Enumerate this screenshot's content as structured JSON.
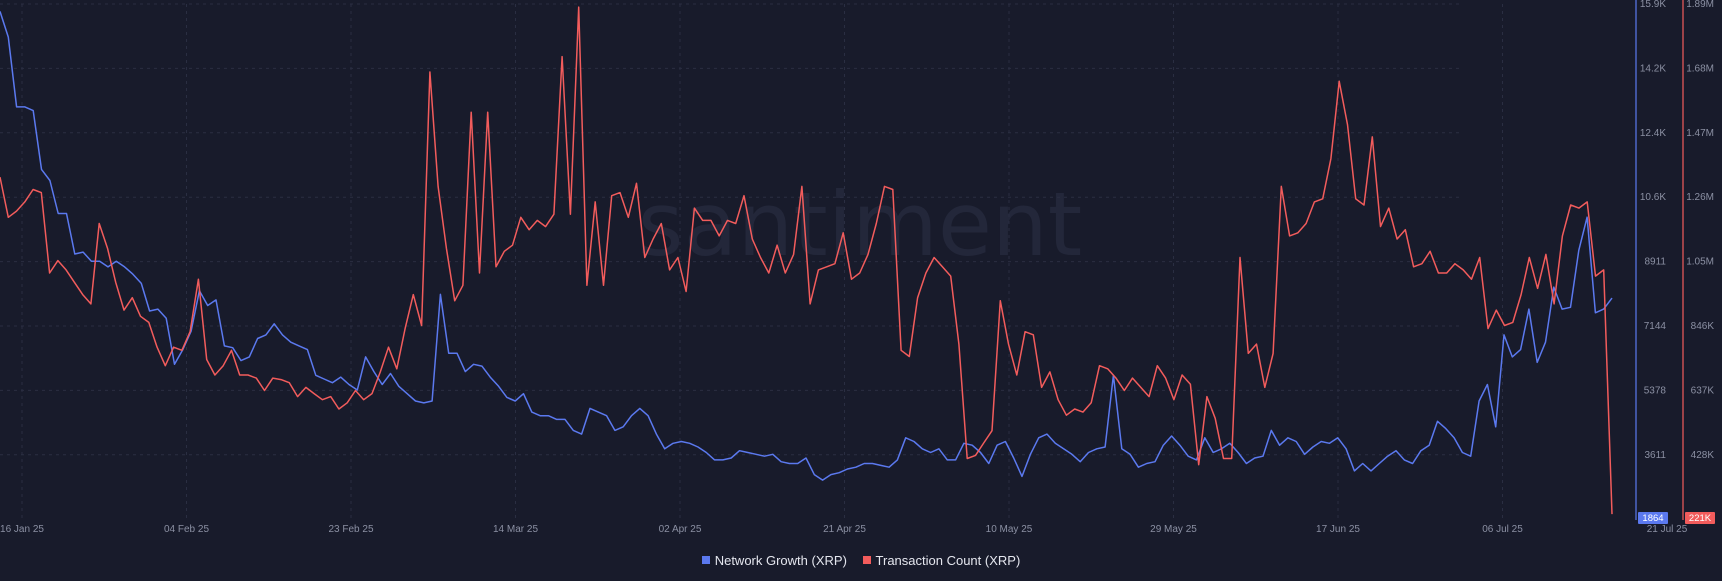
{
  "watermark": "santiment",
  "colors": {
    "background": "#181b2b",
    "network_growth": "#5b79ef",
    "transaction_count": "#f25c5c",
    "grid": "#2a2e42",
    "tick": "#8b90a3"
  },
  "chart_data": {
    "type": "line",
    "x_tick_labels": [
      "16 Jan 25",
      "04 Feb 25",
      "23 Feb 25",
      "14 Mar 25",
      "02 Apr 25",
      "21 Apr 25",
      "10 May 25",
      "29 May 25",
      "17 Jun 25",
      "06 Jul 25",
      "21 Jul 25"
    ],
    "x_range": [
      "16 Jan 25",
      "22 Jul 25"
    ],
    "y_axes": [
      {
        "name": "Network Growth (XRP)",
        "side": "right",
        "ticks": [
          "15.9K",
          "14.2K",
          "12.4K",
          "10.6K",
          "8911",
          "7144",
          "5378",
          "3611"
        ],
        "ylim": [
          1864,
          15900
        ],
        "current_label": "1864"
      },
      {
        "name": "Transaction Count (XRP)",
        "side": "right",
        "ticks": [
          "1.89M",
          "1.68M",
          "1.47M",
          "1.26M",
          "1.05M",
          "846K",
          "637K",
          "428K"
        ],
        "ylim": [
          221000,
          1890000
        ],
        "current_label": "221K"
      }
    ],
    "grid": true,
    "legend_position": "bottom-center",
    "series": [
      {
        "name": "Network Growth (XRP)",
        "axis": 0,
        "values": [
          15700,
          15000,
          13100,
          13100,
          13000,
          11400,
          11100,
          10200,
          10200,
          9100,
          9150,
          8900,
          8900,
          8750,
          8900,
          8750,
          8550,
          8300,
          7550,
          7600,
          7350,
          6100,
          6500,
          7000,
          8100,
          7700,
          7850,
          6600,
          6550,
          6200,
          6300,
          6800,
          6900,
          7200,
          6900,
          6700,
          6600,
          6500,
          5800,
          5700,
          5600,
          5750,
          5550,
          5400,
          6300,
          5900,
          5550,
          5850,
          5500,
          5300,
          5100,
          5050,
          5100,
          8000,
          6400,
          6400,
          5900,
          6100,
          6050,
          5750,
          5500,
          5200,
          5100,
          5300,
          4800,
          4700,
          4700,
          4600,
          4600,
          4300,
          4200,
          4900,
          4800,
          4700,
          4300,
          4400,
          4700,
          4900,
          4700,
          4200,
          3800,
          3950,
          4000,
          3950,
          3850,
          3700,
          3500,
          3500,
          3550,
          3750,
          3700,
          3650,
          3600,
          3650,
          3450,
          3400,
          3400,
          3550,
          3100,
          2950,
          3100,
          3150,
          3250,
          3300,
          3400,
          3400,
          3350,
          3300,
          3500,
          4100,
          4000,
          3800,
          3700,
          3800,
          3500,
          3500,
          3950,
          3900,
          3700,
          3400,
          3900,
          4000,
          3550,
          3050,
          3650,
          4100,
          4200,
          3950,
          3800,
          3650,
          3450,
          3700,
          3800,
          3850,
          5800,
          3800,
          3650,
          3300,
          3400,
          3450,
          3900,
          4150,
          3900,
          3600,
          3500,
          4100,
          3700,
          3800,
          3950,
          3700,
          3400,
          3550,
          3600,
          4300,
          3900,
          4100,
          4000,
          3650,
          3850,
          4000,
          3950,
          4100,
          3800,
          3200,
          3400,
          3200,
          3400,
          3600,
          3750,
          3500,
          3400,
          3750,
          3900,
          4550,
          4350,
          4100,
          3700,
          3600,
          5100,
          5550,
          4400,
          6900,
          6300,
          6500,
          7600,
          6150,
          6700,
          8200,
          7600,
          7650,
          9200,
          10100,
          7500,
          7600,
          7900
        ]
      },
      {
        "name": "Transaction Count (XRP)",
        "axis": 1,
        "values": [
          1330,
          1200,
          1220,
          1250,
          1290,
          1280,
          1020,
          1060,
          1030,
          990,
          950,
          920,
          1180,
          1100,
          990,
          900,
          940,
          880,
          860,
          780,
          720,
          780,
          770,
          830,
          1000,
          740,
          690,
          720,
          770,
          690,
          690,
          680,
          640,
          680,
          675,
          665,
          620,
          650,
          630,
          610,
          620,
          580,
          600,
          640,
          610,
          630,
          700,
          780,
          710,
          840,
          950,
          850,
          1670,
          1300,
          1100,
          930,
          980,
          1540,
          1020,
          1540,
          1040,
          1090,
          1110,
          1200,
          1160,
          1190,
          1170,
          1210,
          1720,
          1210,
          1880,
          980,
          1250,
          980,
          1270,
          1280,
          1200,
          1310,
          1070,
          1130,
          1180,
          1030,
          1070,
          960,
          1230,
          1190,
          1190,
          1140,
          1190,
          1180,
          1270,
          1130,
          1070,
          1020,
          1110,
          1020,
          1080,
          1300,
          920,
          1030,
          1040,
          1050,
          1150,
          1000,
          1020,
          1080,
          1180,
          1300,
          1290,
          770,
          750,
          940,
          1020,
          1070,
          1040,
          1010,
          790,
          420,
          430,
          470,
          510,
          930,
          790,
          690,
          830,
          820,
          650,
          700,
          610,
          560,
          580,
          570,
          600,
          720,
          710,
          680,
          640,
          680,
          650,
          620,
          720,
          680,
          610,
          690,
          660,
          400,
          620,
          550,
          420,
          420,
          1070,
          760,
          790,
          650,
          760,
          1300,
          1140,
          1150,
          1180,
          1250,
          1260,
          1390,
          1640,
          1500,
          1260,
          1240,
          1460,
          1170,
          1230,
          1130,
          1160,
          1040,
          1050,
          1090,
          1020,
          1020,
          1050,
          1030,
          1000,
          1070,
          840,
          900,
          850,
          860,
          950,
          1070,
          970,
          1080,
          920,
          1140,
          1240,
          1230,
          1250,
          1010,
          1030,
          240
        ]
      }
    ]
  },
  "legend": [
    {
      "label": "Network Growth (XRP)",
      "color": "#5b79ef"
    },
    {
      "label": "Transaction Count (XRP)",
      "color": "#f25c5c"
    }
  ]
}
